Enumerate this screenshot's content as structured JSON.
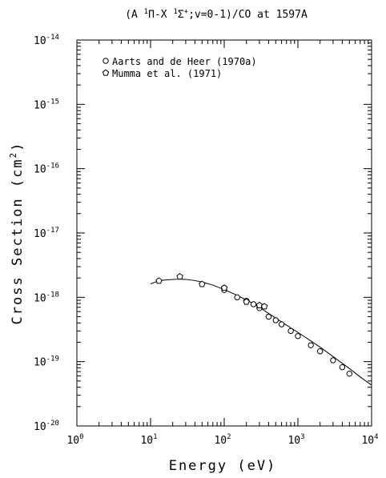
{
  "chart_data": {
    "type": "scatter",
    "title": {
      "pre": "(A ",
      "sup1": "1",
      "mid1": "Π-X ",
      "sup2": "1",
      "mid2": "Σ",
      "sup3": "+",
      "post": ";v=0-1)/CO at 1597A"
    },
    "xlabel": "Energy (eV)",
    "ylabel": {
      "main": "Cross Section (cm",
      "sup": "2",
      "close": ")"
    },
    "x_scale": "log",
    "y_scale": "log",
    "xlim": [
      1,
      10000
    ],
    "ylim": [
      1e-20,
      1e-14
    ],
    "x_ticks": [
      {
        "value": 1,
        "base": "10",
        "exp": "0"
      },
      {
        "value": 10,
        "base": "10",
        "exp": "1"
      },
      {
        "value": 100,
        "base": "10",
        "exp": "2"
      },
      {
        "value": 1000,
        "base": "10",
        "exp": "3"
      },
      {
        "value": 10000,
        "base": "10",
        "exp": "4"
      }
    ],
    "y_ticks": [
      {
        "value": 1e-20,
        "base": "10",
        "exp": "-20"
      },
      {
        "value": 1e-19,
        "base": "10",
        "exp": "-19"
      },
      {
        "value": 1e-18,
        "base": "10",
        "exp": "-18"
      },
      {
        "value": 1e-17,
        "base": "10",
        "exp": "-17"
      },
      {
        "value": 1e-16,
        "base": "10",
        "exp": "-16"
      },
      {
        "value": 1e-15,
        "base": "10",
        "exp": "-15"
      },
      {
        "value": 1e-14,
        "base": "10",
        "exp": "-14"
      }
    ],
    "grid": false,
    "legend_position": "top-left",
    "series": [
      {
        "name": "Aarts and de Heer (1970a)",
        "marker": "circle",
        "x": [
          100,
          150,
          200,
          250,
          300,
          400,
          500,
          600,
          800,
          1000,
          1500,
          2000,
          3000,
          4000,
          5000
        ],
        "y": [
          1.3e-18,
          1e-18,
          8.8e-19,
          7.8e-19,
          6.8e-19,
          5e-19,
          4.4e-19,
          3.8e-19,
          3e-19,
          2.5e-19,
          1.8e-19,
          1.45e-19,
          1.05e-19,
          8.2e-20,
          6.5e-20
        ]
      },
      {
        "name": "Mumma et al. (1971)",
        "marker": "pentagon",
        "x": [
          13,
          25,
          50,
          100,
          200,
          300,
          350
        ],
        "y": [
          1.8e-18,
          2.1e-18,
          1.6e-18,
          1.4e-18,
          8.5e-19,
          7.5e-19,
          7.2e-19
        ]
      }
    ],
    "fit_curve": {
      "x": [
        10,
        12,
        15,
        20,
        25,
        30,
        40,
        50,
        70,
        100,
        150,
        200,
        300,
        500,
        700,
        1000,
        1500,
        2000,
        3000,
        5000,
        7000,
        10000
      ],
      "y": [
        1.62e-18,
        1.75e-18,
        1.85e-18,
        1.9e-18,
        1.92e-18,
        1.9e-18,
        1.82e-18,
        1.73e-18,
        1.55e-18,
        1.32e-18,
        1.07e-18,
        9.1e-19,
        7e-19,
        4.75e-19,
        3.7e-19,
        2.85e-19,
        2.1e-19,
        1.68e-19,
        1.2e-19,
        7.8e-20,
        5.8e-20,
        4.3e-20
      ]
    }
  }
}
